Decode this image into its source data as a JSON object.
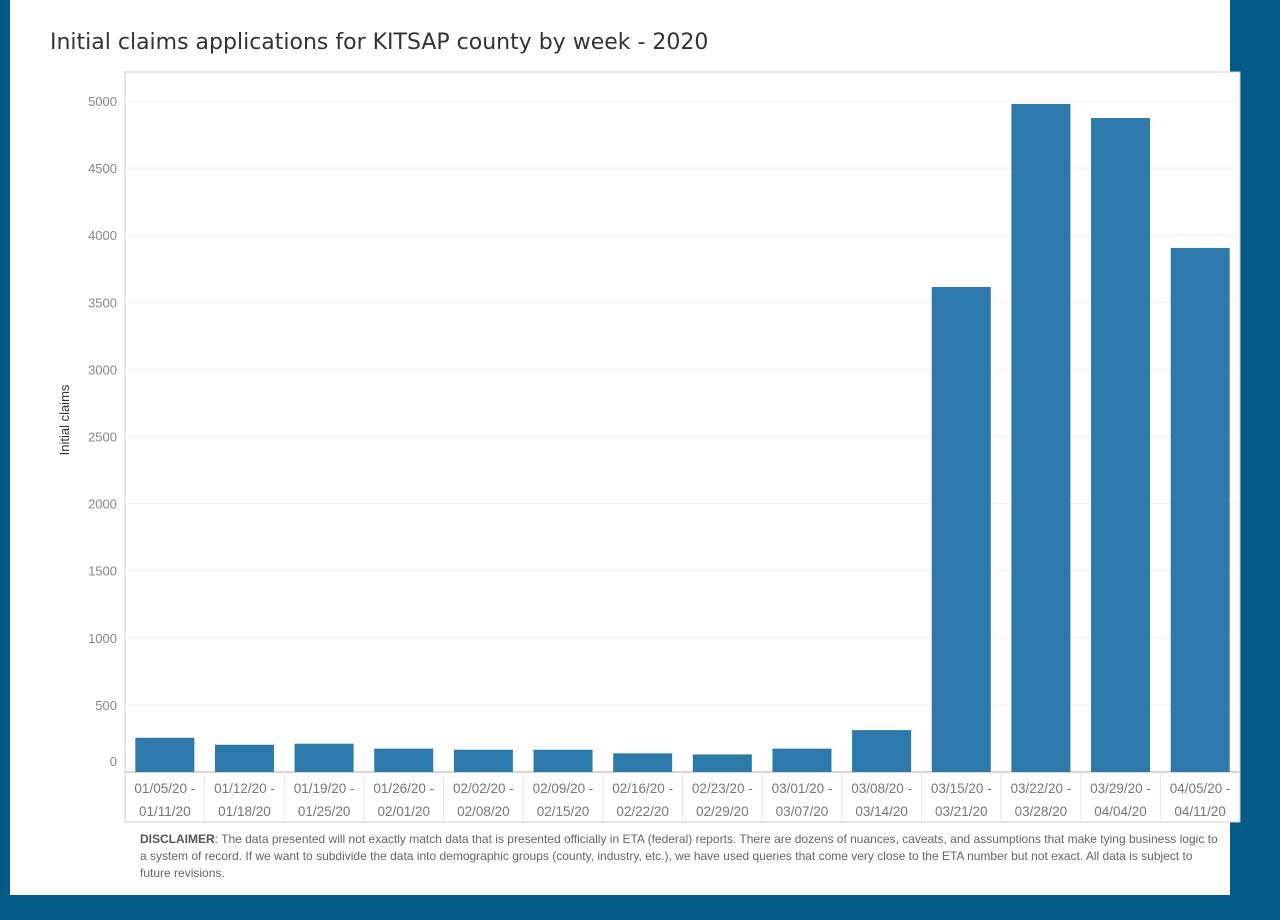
{
  "chart_data": {
    "type": "bar",
    "title": "Initial claims applications for KITSAP county by week - 2020",
    "xlabel": "",
    "ylabel": "Initial claims",
    "ylim": [
      0,
      5000
    ],
    "yticks": [
      "0",
      "500",
      "1000",
      "1500",
      "2000",
      "2500",
      "3000",
      "3500",
      "4000",
      "4500",
      "5000"
    ],
    "grid": true,
    "categories": [
      [
        "01/05/20 -",
        "01/11/20"
      ],
      [
        "01/12/20 -",
        "01/18/20"
      ],
      [
        "01/19/20 -",
        "01/25/20"
      ],
      [
        "01/26/20 -",
        "02/01/20"
      ],
      [
        "02/02/20 -",
        "02/08/20"
      ],
      [
        "02/09/20 -",
        "02/15/20"
      ],
      [
        "02/16/20 -",
        "02/22/20"
      ],
      [
        "02/23/20 -",
        "02/29/20"
      ],
      [
        "03/01/20 -",
        "03/07/20"
      ],
      [
        "03/08/20 -",
        "03/14/20"
      ],
      [
        "03/15/20 -",
        "03/21/20"
      ],
      [
        "03/22/20 -",
        "03/28/20"
      ],
      [
        "03/29/20 -",
        "04/04/20"
      ],
      [
        "04/05/20 -",
        "04/11/20"
      ]
    ],
    "values": [
      255,
      203,
      211,
      174,
      166,
      166,
      139,
      131,
      174,
      312,
      3614,
      4978,
      4873,
      3905
    ],
    "bar_color": "#2d79ab"
  },
  "disclaimer": {
    "label": "DISCLAIMER",
    "text": ": The data presented will not exactly match data that is presented officially in ETA (federal) reports. There are dozens of nuances, caveats, and assumptions that make tying business logic to a system of record. If we want to subdivide the data into demographic groups (county, industry, etc.), we have used queries that come very close to the ETA number but not exact.  All data is subject to future revisions."
  }
}
